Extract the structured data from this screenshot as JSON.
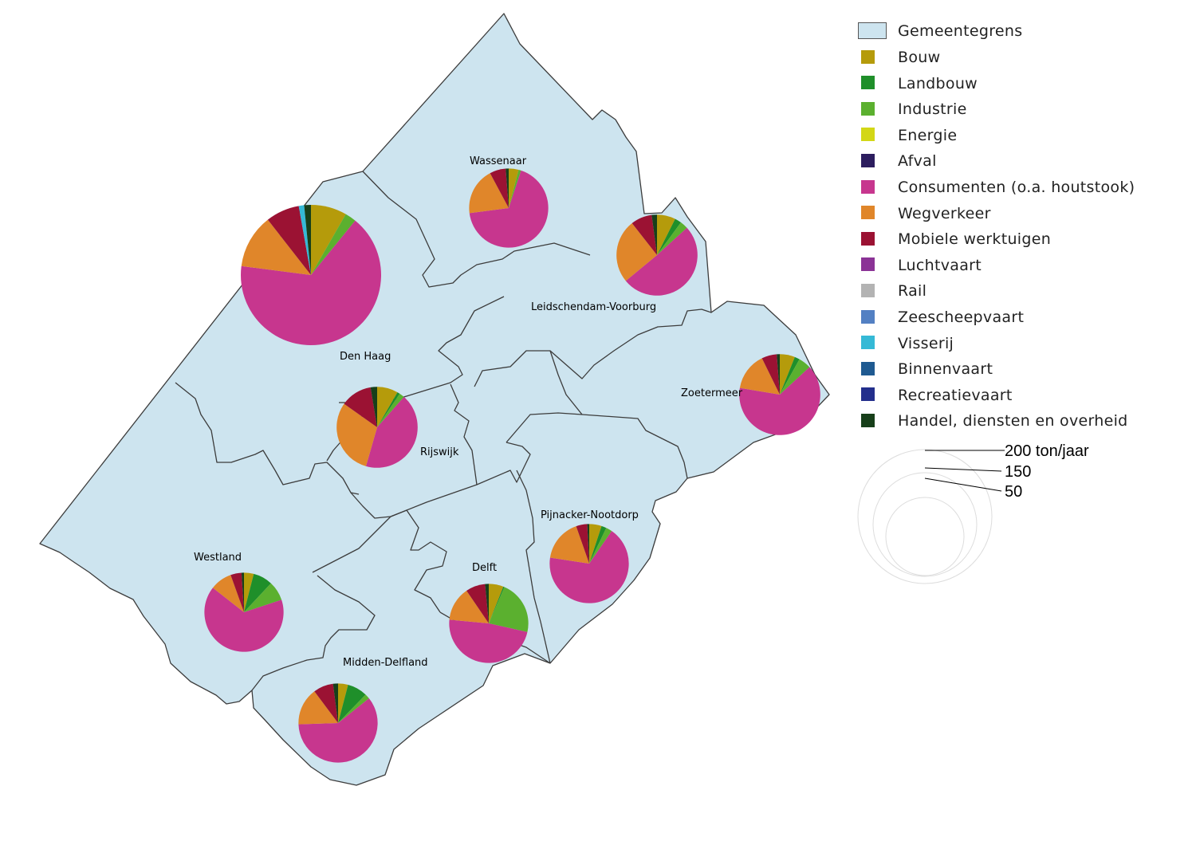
{
  "legend": {
    "boundary_label": "Gemeentegrens",
    "boundary_color": "#cde4ef",
    "categories": [
      {
        "label": "Bouw",
        "color": "#b59b0b"
      },
      {
        "label": "Landbouw",
        "color": "#1f8f2a"
      },
      {
        "label": "Industrie",
        "color": "#5bb02f"
      },
      {
        "label": "Energie",
        "color": "#d3d716"
      },
      {
        "label": "Afval",
        "color": "#2c1d5e"
      },
      {
        "label": "Consumenten (o.a. houtstook)",
        "color": "#c7368e"
      },
      {
        "label": "Wegverkeer",
        "color": "#e0862a"
      },
      {
        "label": "Mobiele werktuigen",
        "color": "#9b1233"
      },
      {
        "label": "Luchtvaart",
        "color": "#8b3396"
      },
      {
        "label": "Rail",
        "color": "#b3b3b3"
      },
      {
        "label": "Zeescheepvaart",
        "color": "#5380c3"
      },
      {
        "label": "Visserij",
        "color": "#35b9d6"
      },
      {
        "label": "Binnenvaart",
        "color": "#1f5a91"
      },
      {
        "label": "Recreatievaart",
        "color": "#232f8c"
      },
      {
        "label": "Handel, diensten en overheid",
        "color": "#173f1a"
      }
    ],
    "size_legend": [
      {
        "label": "200 ton/jaar",
        "value": 200
      },
      {
        "label": "150",
        "value": 150
      },
      {
        "label": "50",
        "value": 50
      }
    ]
  },
  "municipalities": [
    {
      "name": "Den Haag"
    },
    {
      "name": "Wassenaar"
    },
    {
      "name": "Leidschendam-Voorburg"
    },
    {
      "name": "Zoetermeer"
    },
    {
      "name": "Rijswijk"
    },
    {
      "name": "Westland"
    },
    {
      "name": "Delft"
    },
    {
      "name": "Pijnacker-Nootdorp"
    },
    {
      "name": "Midden-Delfland"
    }
  ],
  "chart_data": {
    "type": "pie",
    "unit": "ton/jaar",
    "categories": [
      "Bouw",
      "Landbouw",
      "Industrie",
      "Energie",
      "Afval",
      "Consumenten (o.a. houtstook)",
      "Wegverkeer",
      "Mobiele werktuigen",
      "Luchtvaart",
      "Rail",
      "Zeescheepvaart",
      "Visserij",
      "Binnenvaart",
      "Recreatievaart",
      "Handel, diensten en overheid"
    ],
    "pies": [
      {
        "municipality": "Den Haag",
        "total": 330,
        "shares": [
          0.08,
          0,
          0.025,
          0,
          0,
          0.64,
          0.12,
          0.075,
          0,
          0,
          0,
          0.012,
          0,
          0,
          0.015
        ]
      },
      {
        "municipality": "Wassenaar",
        "total": 105,
        "shares": [
          0.04,
          0,
          0.01,
          0,
          0,
          0.67,
          0.19,
          0.065,
          0,
          0,
          0,
          0,
          0,
          0,
          0.012
        ]
      },
      {
        "municipality": "Leidschendam-Voorburg",
        "total": 110,
        "shares": [
          0.07,
          0.025,
          0.03,
          0,
          0,
          0.48,
          0.24,
          0.08,
          0,
          0,
          0,
          0,
          0,
          0,
          0.02
        ]
      },
      {
        "municipality": "Zoetermeer",
        "total": 110,
        "shares": [
          0.06,
          0.02,
          0.05,
          0,
          0,
          0.64,
          0.15,
          0.06,
          0,
          0,
          0,
          0,
          0,
          0,
          0.012
        ]
      },
      {
        "municipality": "Rijswijk",
        "total": 110,
        "shares": [
          0.08,
          0.01,
          0.02,
          0,
          0,
          0.41,
          0.29,
          0.12,
          0,
          0,
          0,
          0,
          0,
          0,
          0.025
        ]
      },
      {
        "municipality": "Westland",
        "total": 105,
        "shares": [
          0.04,
          0.08,
          0.08,
          0,
          0,
          0.66,
          0.09,
          0.045,
          0,
          0,
          0,
          0,
          0,
          0,
          0.01
        ]
      },
      {
        "municipality": "Delft",
        "total": 105,
        "shares": [
          0.06,
          0.005,
          0.22,
          0,
          0,
          0.48,
          0.14,
          0.08,
          0,
          0,
          0,
          0,
          0,
          0,
          0.015
        ]
      },
      {
        "municipality": "Pijnacker-Nootdorp",
        "total": 105,
        "shares": [
          0.05,
          0.02,
          0.025,
          0,
          0,
          0.67,
          0.17,
          0.045,
          0,
          0,
          0,
          0,
          0,
          0,
          0.008
        ]
      },
      {
        "municipality": "Midden-Delfland",
        "total": 105,
        "shares": [
          0.04,
          0.08,
          0.02,
          0,
          0,
          0.59,
          0.15,
          0.08,
          0,
          0,
          0,
          0,
          0,
          0,
          0.02
        ]
      }
    ]
  }
}
